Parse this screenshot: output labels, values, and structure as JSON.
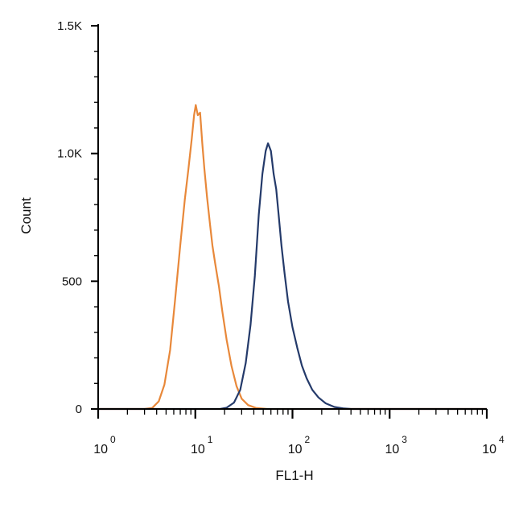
{
  "chart_data": {
    "type": "line",
    "title": "",
    "xlabel": "FL1-H",
    "ylabel": "Count",
    "x_scale": "log",
    "xlim": [
      1,
      10000
    ],
    "ylim": [
      0,
      1500
    ],
    "grid": false,
    "legend": "none",
    "y_tick_values": [
      0,
      500,
      1000,
      1500
    ],
    "y_tick_labels": [
      "0",
      "500",
      "1.0K",
      "1.5K"
    ],
    "x_tick_values": [
      1,
      10,
      100,
      1000,
      10000
    ],
    "x_tick_base": "10",
    "x_tick_exponents": [
      "0",
      "1",
      "2",
      "3",
      "4"
    ],
    "series": [
      {
        "color": "#e8883a",
        "points": [
          [
            1,
            0
          ],
          [
            3.0,
            0
          ],
          [
            3.6,
            4
          ],
          [
            4.2,
            30
          ],
          [
            4.8,
            95
          ],
          [
            5.5,
            230
          ],
          [
            6.2,
            430
          ],
          [
            7.0,
            640
          ],
          [
            7.8,
            820
          ],
          [
            8.5,
            940
          ],
          [
            9.2,
            1060
          ],
          [
            9.7,
            1150
          ],
          [
            10.1,
            1190
          ],
          [
            10.6,
            1150
          ],
          [
            11.2,
            1160
          ],
          [
            11.8,
            1040
          ],
          [
            12.4,
            940
          ],
          [
            13.2,
            830
          ],
          [
            14.2,
            720
          ],
          [
            15.0,
            640
          ],
          [
            16.0,
            570
          ],
          [
            17.5,
            480
          ],
          [
            19.0,
            380
          ],
          [
            21.0,
            270
          ],
          [
            23.5,
            170
          ],
          [
            26.5,
            90
          ],
          [
            30.0,
            40
          ],
          [
            35.0,
            15
          ],
          [
            42.0,
            4
          ],
          [
            55.0,
            0
          ],
          [
            10000,
            0
          ]
        ]
      },
      {
        "color": "#243a6a",
        "points": [
          [
            1,
            0
          ],
          [
            18.0,
            0
          ],
          [
            21.0,
            5
          ],
          [
            25.0,
            25
          ],
          [
            29.0,
            75
          ],
          [
            33.0,
            180
          ],
          [
            37.0,
            330
          ],
          [
            41.0,
            520
          ],
          [
            45.0,
            760
          ],
          [
            49.0,
            920
          ],
          [
            53.0,
            1010
          ],
          [
            56.0,
            1040
          ],
          [
            60.0,
            1010
          ],
          [
            64.0,
            920
          ],
          [
            68.0,
            860
          ],
          [
            72.0,
            760
          ],
          [
            77.0,
            640
          ],
          [
            83.0,
            530
          ],
          [
            90.0,
            420
          ],
          [
            100.0,
            320
          ],
          [
            112.0,
            240
          ],
          [
            125.0,
            170
          ],
          [
            140.0,
            120
          ],
          [
            160.0,
            75
          ],
          [
            185.0,
            45
          ],
          [
            220.0,
            22
          ],
          [
            270.0,
            8
          ],
          [
            340.0,
            2
          ],
          [
            400.0,
            0
          ],
          [
            10000,
            0
          ]
        ]
      }
    ]
  }
}
